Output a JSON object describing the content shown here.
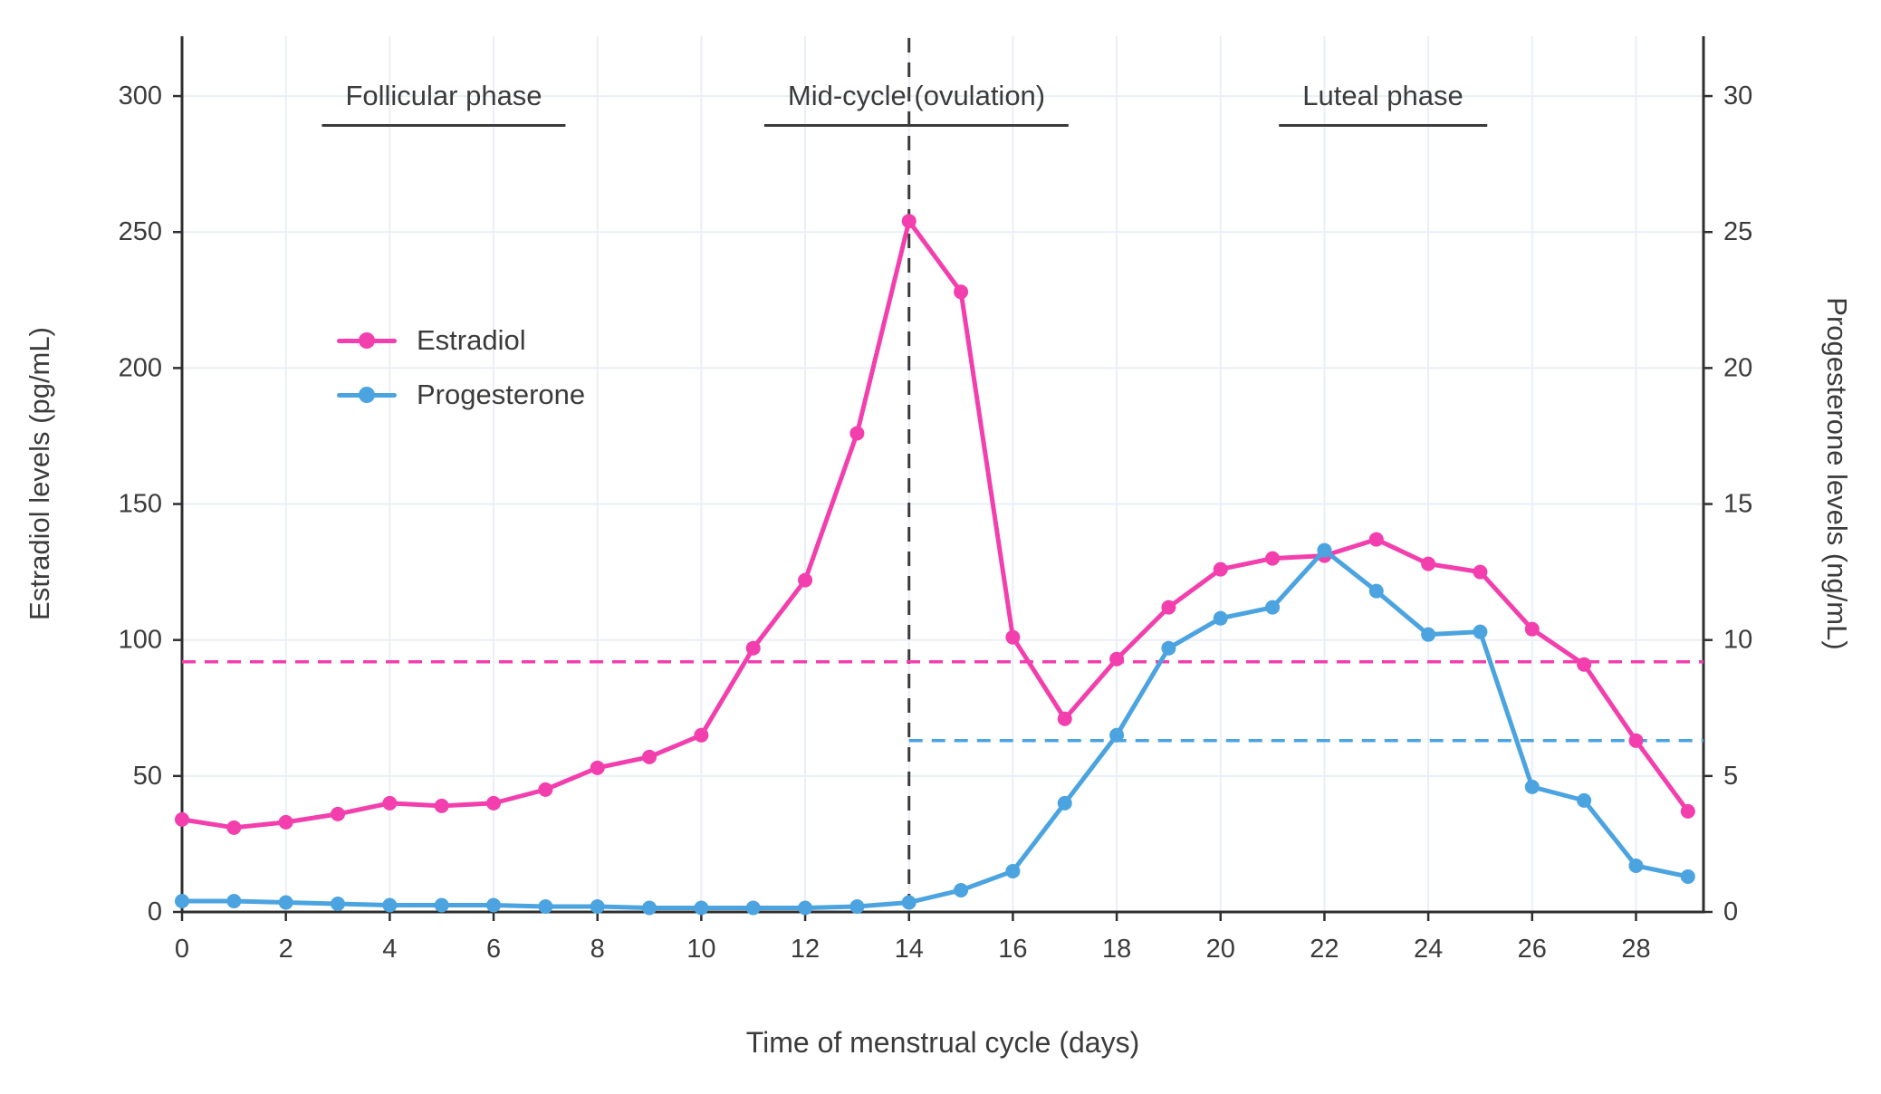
{
  "chart_data": {
    "type": "line",
    "title": "",
    "xlabel": "Time of menstrual cycle (days)",
    "ylabel_left": "Estradiol levels (pg/mL)",
    "ylabel_right": "Progesterone levels (ng/mL)",
    "annotations": [
      "Follicular phase",
      "Mid-cycle (ovulation)",
      "Luteal phase"
    ],
    "grid": true,
    "legend_position": "inside-upper-left",
    "x_range": [
      0,
      29.3
    ],
    "y_left_range": [
      0,
      322
    ],
    "y_right_range": [
      0,
      32.2
    ],
    "x_ticks": [
      0,
      2,
      4,
      6,
      8,
      10,
      12,
      14,
      16,
      18,
      20,
      22,
      24,
      26,
      28
    ],
    "y_left_ticks": [
      0,
      50,
      100,
      150,
      200,
      250,
      300
    ],
    "y_right_ticks": [
      0,
      5,
      10,
      15,
      20,
      25,
      30
    ],
    "x": [
      0,
      1,
      2,
      3,
      4,
      5,
      6,
      7,
      8,
      9,
      10,
      11,
      12,
      13,
      14,
      15,
      16,
      17,
      18,
      19,
      20,
      21,
      22,
      23,
      24,
      25,
      26,
      27,
      28,
      29
    ],
    "series": [
      {
        "name": "Estradiol",
        "axis": "left",
        "units": "pg/mL",
        "color": "#F23FAD",
        "values": [
          34,
          31,
          33,
          36,
          40,
          39,
          40,
          45,
          53,
          57,
          65,
          97,
          122,
          176,
          254,
          228,
          101,
          71,
          93,
          112,
          126,
          130,
          131,
          137,
          128,
          125,
          104,
          91,
          63,
          37
        ]
      },
      {
        "name": "Progesterone",
        "axis": "right",
        "units": "ng/mL",
        "color": "#4BA3E0",
        "values": [
          0.4,
          0.4,
          0.35,
          0.3,
          0.25,
          0.25,
          0.25,
          0.2,
          0.2,
          0.15,
          0.15,
          0.15,
          0.15,
          0.2,
          0.35,
          0.8,
          1.5,
          4.0,
          6.5,
          9.7,
          10.8,
          11.2,
          13.3,
          11.8,
          10.2,
          10.3,
          4.6,
          4.1,
          1.7,
          1.3
        ]
      }
    ],
    "reference_lines": {
      "ovulation_day": 14,
      "ovulation_line_color": "#3a3a3a",
      "estradiol_dashed_pg_ml": 92,
      "progesterone_dashed_ng_ml": 6.3,
      "progesterone_dashed_start_day": 14
    }
  },
  "colors": {
    "estradiol": "#F23FAD",
    "progesterone": "#4BA3E0",
    "text": "#3b3b3b",
    "spine": "#2f2f2f",
    "gridline": "#eaeef7",
    "background": "#ffffff"
  }
}
